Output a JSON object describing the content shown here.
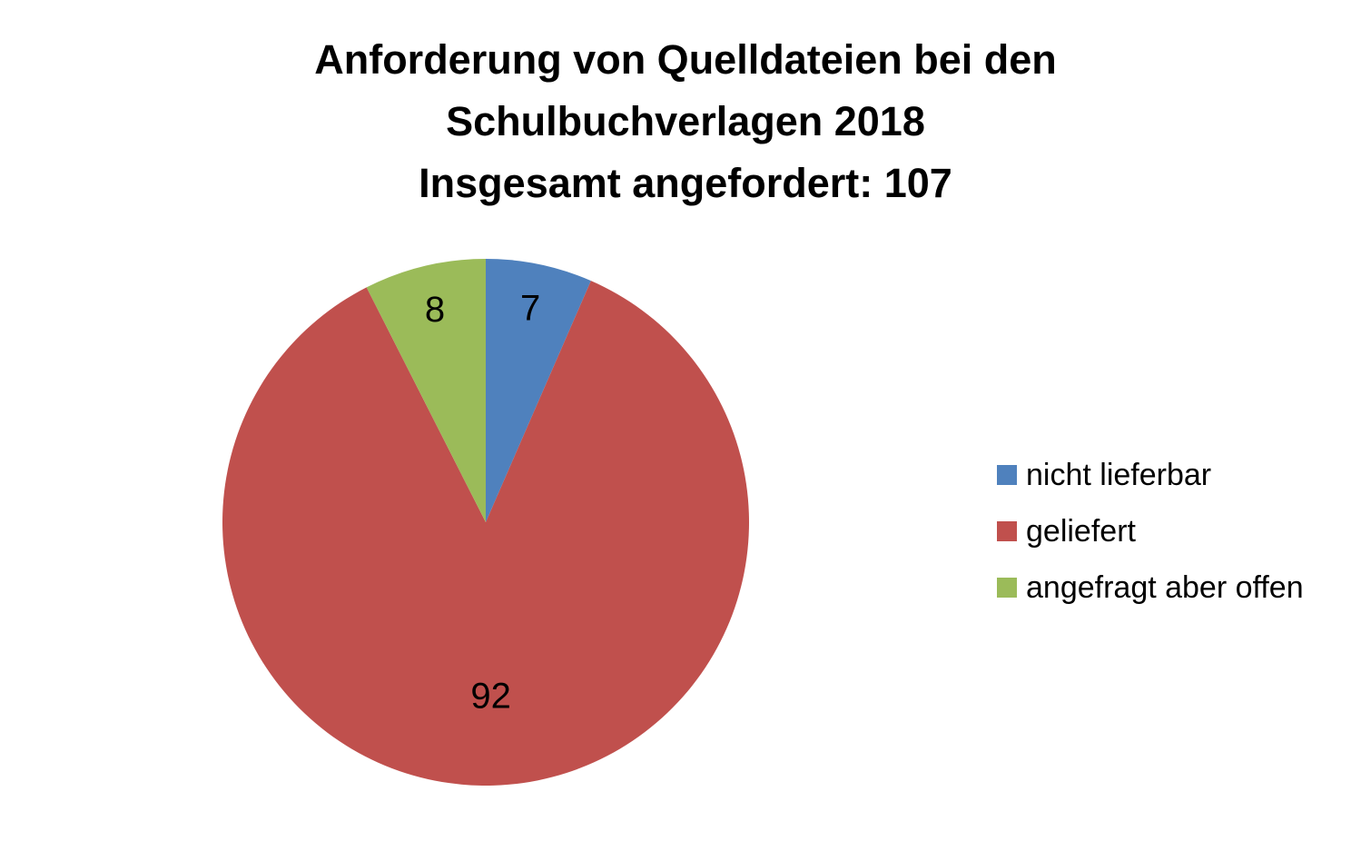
{
  "chart_data": {
    "type": "pie",
    "title": [
      "Anforderung von Quelldateien bei den",
      "Schulbuchverlagen 2018",
      "Insgesamt angefordert: 107"
    ],
    "slices": [
      {
        "label": "nicht lieferbar",
        "value": 7,
        "color": "#4f81bd"
      },
      {
        "label": "geliefert",
        "value": 92,
        "color": "#c0504d"
      },
      {
        "label": "angefragt aber offen",
        "value": 8,
        "color": "#9bbb59"
      }
    ],
    "legend_position": "right",
    "data_labels": true
  }
}
